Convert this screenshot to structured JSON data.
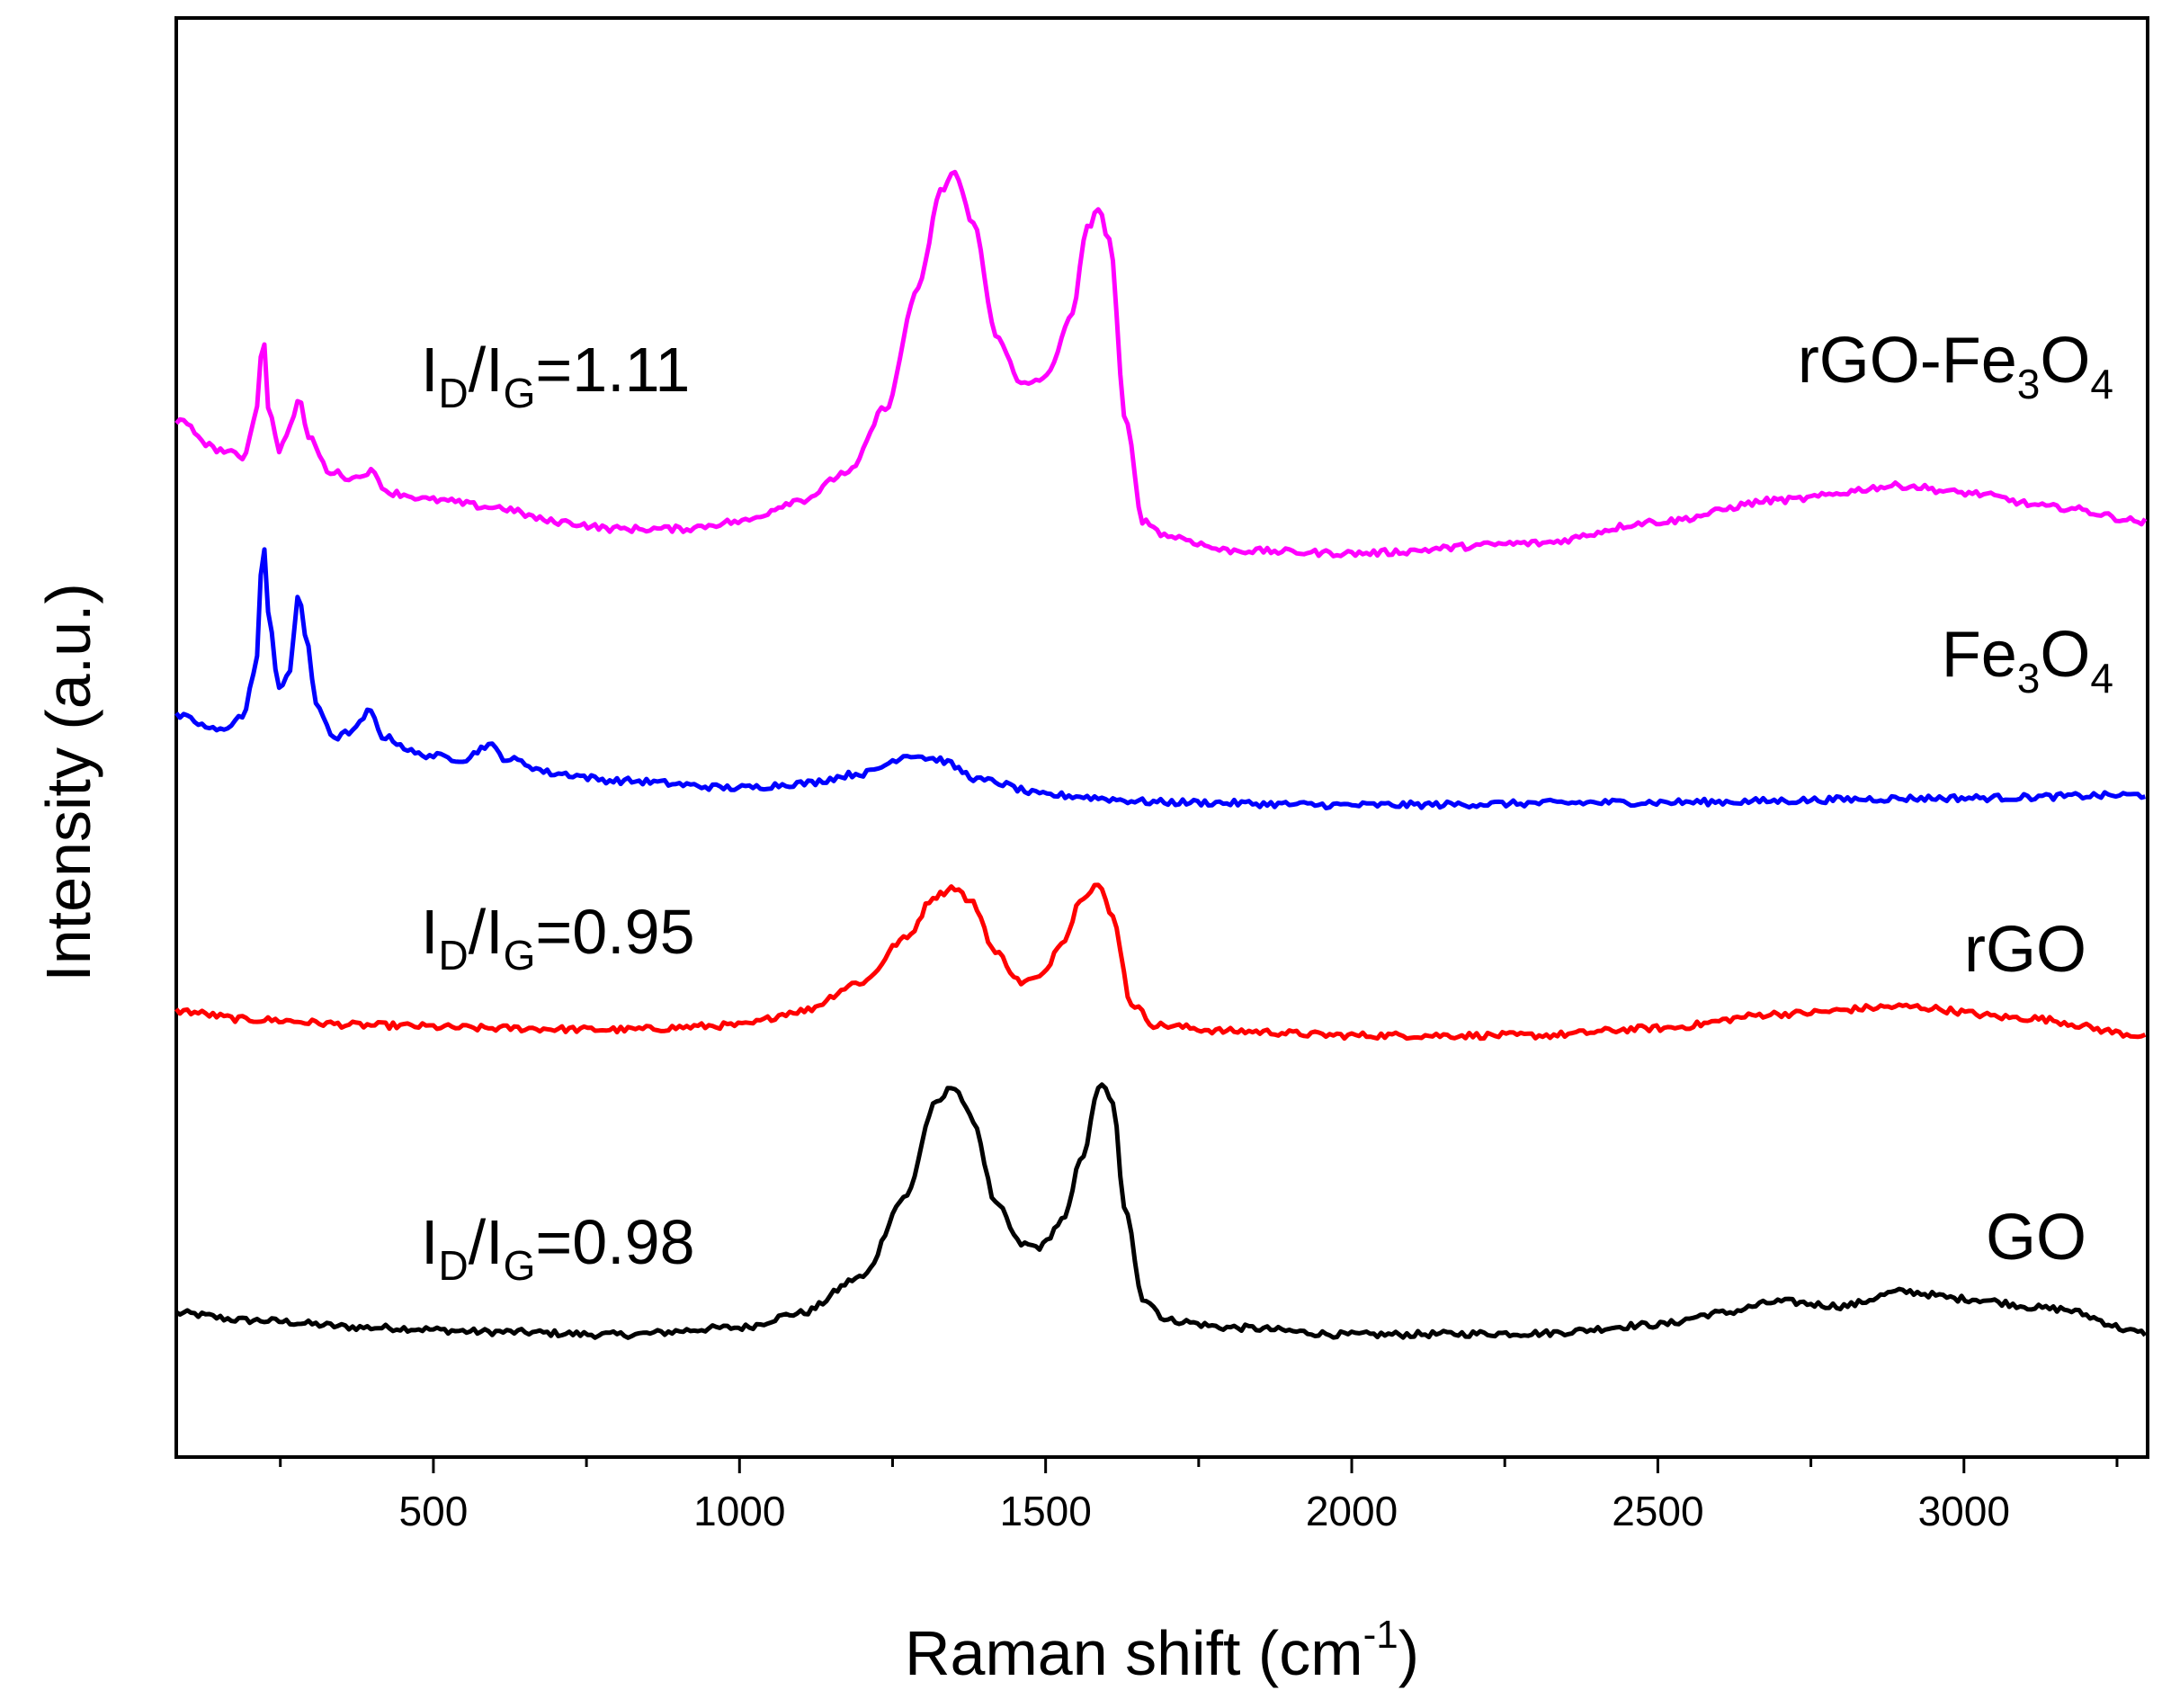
{
  "chart_data": {
    "type": "line",
    "xlabel_main": "Raman shift (cm",
    "xlabel_sup": "-1",
    "xlabel_close": ")",
    "ylabel": "Intensity (a.u.)",
    "xlim": [
      80,
      3300
    ],
    "ylim": [
      0,
      100
    ],
    "x_ticks": [
      500,
      1000,
      1500,
      2000,
      2500,
      3000
    ],
    "x_tick_labels": [
      "500",
      "1000",
      "1500",
      "2000",
      "2500",
      "3000"
    ],
    "y_ticks_visible": false,
    "grid": false,
    "series": [
      {
        "name": "GO",
        "color": "#000000",
        "label_parts": [
          "GO"
        ],
        "baseline": 8,
        "ratio": {
          "I": "I",
          "D": "D",
          "slash": "/",
          "I2": "I",
          "G": "G",
          "value": "=0.98"
        },
        "points": [
          [
            80,
            10.0
          ],
          [
            200,
            9.5
          ],
          [
            400,
            9.0
          ],
          [
            600,
            8.7
          ],
          [
            800,
            8.5
          ],
          [
            1000,
            9.0
          ],
          [
            1100,
            10.0
          ],
          [
            1200,
            12.5
          ],
          [
            1270,
            18.0
          ],
          [
            1320,
            24.5
          ],
          [
            1350,
            25.8
          ],
          [
            1380,
            23.5
          ],
          [
            1420,
            17.5
          ],
          [
            1460,
            14.8
          ],
          [
            1490,
            14.6
          ],
          [
            1530,
            16.5
          ],
          [
            1560,
            21.0
          ],
          [
            1590,
            26.0
          ],
          [
            1610,
            24.5
          ],
          [
            1630,
            17.0
          ],
          [
            1660,
            11.0
          ],
          [
            1700,
            9.5
          ],
          [
            1800,
            9.0
          ],
          [
            2000,
            8.5
          ],
          [
            2300,
            8.6
          ],
          [
            2500,
            9.2
          ],
          [
            2600,
            10.0
          ],
          [
            2700,
            10.8
          ],
          [
            2800,
            10.5
          ],
          [
            2900,
            11.5
          ],
          [
            3000,
            11.0
          ],
          [
            3150,
            10.3
          ],
          [
            3300,
            8.6
          ]
        ]
      },
      {
        "name": "rGO",
        "color": "#ff0000",
        "label_parts": [
          "rGO"
        ],
        "ratio": {
          "I": "I",
          "D": "D",
          "slash": "/",
          "I2": "I",
          "G": "G",
          "value": "=0.95"
        },
        "points": [
          [
            80,
            31.0
          ],
          [
            200,
            30.4
          ],
          [
            400,
            30.0
          ],
          [
            600,
            29.8
          ],
          [
            800,
            29.7
          ],
          [
            1000,
            30.0
          ],
          [
            1100,
            31.0
          ],
          [
            1200,
            33.0
          ],
          [
            1270,
            36.0
          ],
          [
            1320,
            39.0
          ],
          [
            1350,
            39.6
          ],
          [
            1380,
            38.5
          ],
          [
            1420,
            35.0
          ],
          [
            1460,
            33.0
          ],
          [
            1490,
            33.3
          ],
          [
            1530,
            36.0
          ],
          [
            1560,
            39.0
          ],
          [
            1585,
            39.8
          ],
          [
            1610,
            37.5
          ],
          [
            1640,
            31.5
          ],
          [
            1680,
            30.0
          ],
          [
            1800,
            29.6
          ],
          [
            2000,
            29.3
          ],
          [
            2300,
            29.3
          ],
          [
            2500,
            29.8
          ],
          [
            2700,
            30.8
          ],
          [
            2900,
            31.3
          ],
          [
            3100,
            30.5
          ],
          [
            3300,
            29.3
          ]
        ]
      },
      {
        "name": "Fe3O4",
        "color": "#0000ff",
        "label_parts": [
          "Fe",
          "3",
          "O",
          "4"
        ],
        "points": [
          [
            80,
            51.5
          ],
          [
            150,
            50.5
          ],
          [
            190,
            51.5
          ],
          [
            210,
            55.0
          ],
          [
            222,
            63.5
          ],
          [
            232,
            58.0
          ],
          [
            248,
            53.5
          ],
          [
            265,
            54.5
          ],
          [
            280,
            60.0
          ],
          [
            292,
            57.0
          ],
          [
            310,
            52.0
          ],
          [
            340,
            50.0
          ],
          [
            370,
            50.5
          ],
          [
            395,
            51.8
          ],
          [
            420,
            50.0
          ],
          [
            480,
            48.8
          ],
          [
            550,
            48.5
          ],
          [
            590,
            49.5
          ],
          [
            620,
            48.5
          ],
          [
            700,
            47.5
          ],
          [
            800,
            47.0
          ],
          [
            1000,
            46.5
          ],
          [
            1100,
            46.8
          ],
          [
            1200,
            47.5
          ],
          [
            1280,
            48.8
          ],
          [
            1320,
            48.5
          ],
          [
            1400,
            47.0
          ],
          [
            1500,
            46.0
          ],
          [
            1700,
            45.5
          ],
          [
            2000,
            45.3
          ],
          [
            2500,
            45.5
          ],
          [
            3000,
            45.8
          ],
          [
            3300,
            46.0
          ]
        ]
      },
      {
        "name": "rGO-Fe3O4",
        "color": "#ff00ff",
        "label_parts": [
          "rGO-Fe",
          "3",
          "O",
          "4"
        ],
        "ratio": {
          "I": "I",
          "D": "D",
          "slash": "/",
          "I2": "I",
          "G": "G",
          "value": "=1.11"
        },
        "points": [
          [
            80,
            72.0
          ],
          [
            150,
            70.0
          ],
          [
            190,
            69.5
          ],
          [
            210,
            72.5
          ],
          [
            222,
            78.0
          ],
          [
            232,
            72.5
          ],
          [
            248,
            70.0
          ],
          [
            265,
            71.5
          ],
          [
            280,
            73.5
          ],
          [
            295,
            71.0
          ],
          [
            330,
            68.5
          ],
          [
            370,
            68.0
          ],
          [
            395,
            68.5
          ],
          [
            430,
            67.0
          ],
          [
            500,
            66.5
          ],
          [
            600,
            66.0
          ],
          [
            700,
            65.0
          ],
          [
            800,
            64.5
          ],
          [
            900,
            64.5
          ],
          [
            1000,
            65.0
          ],
          [
            1100,
            66.5
          ],
          [
            1180,
            68.5
          ],
          [
            1240,
            73.0
          ],
          [
            1290,
            81.0
          ],
          [
            1330,
            88.0
          ],
          [
            1350,
            89.3
          ],
          [
            1380,
            86.0
          ],
          [
            1420,
            78.0
          ],
          [
            1460,
            74.5
          ],
          [
            1500,
            75.0
          ],
          [
            1540,
            79.0
          ],
          [
            1570,
            85.5
          ],
          [
            1585,
            86.8
          ],
          [
            1605,
            84.5
          ],
          [
            1630,
            72.0
          ],
          [
            1660,
            65.0
          ],
          [
            1700,
            64.0
          ],
          [
            1800,
            63.0
          ],
          [
            2000,
            62.8
          ],
          [
            2300,
            63.5
          ],
          [
            2500,
            65.0
          ],
          [
            2700,
            66.5
          ],
          [
            2900,
            67.5
          ],
          [
            3000,
            67.0
          ],
          [
            3150,
            66.0
          ],
          [
            3300,
            65.0
          ]
        ]
      }
    ]
  }
}
